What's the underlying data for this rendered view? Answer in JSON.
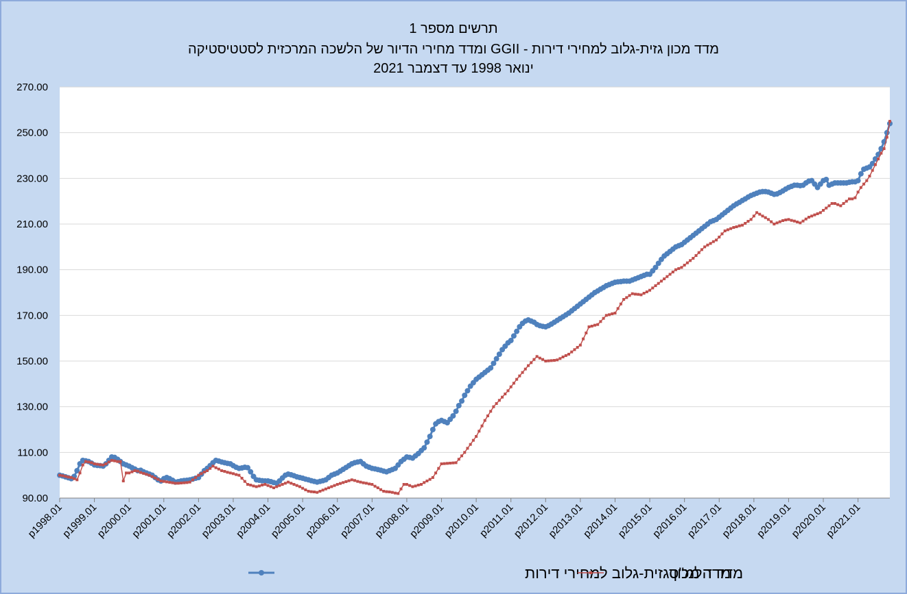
{
  "chart_data": {
    "type": "line",
    "title": "תרשים מספר 1",
    "subtitle": [
      "מדד מכון גזית-גלוב למחירי דירות - GGII ומדד מחירי הדיור של הלשכה המרכזית לסטטיסטיקה",
      "ינואר 1998 עד דצמבר 2021"
    ],
    "categories": [
      "p1998.01",
      null,
      null,
      null,
      null,
      null,
      null,
      null,
      null,
      null,
      null,
      null,
      "p1999.01",
      null,
      null,
      null,
      null,
      null,
      null,
      null,
      null,
      null,
      null,
      null,
      "p2000.01",
      null,
      null,
      null,
      null,
      null,
      null,
      null,
      null,
      null,
      null,
      null,
      "p2001.01",
      null,
      null,
      null,
      null,
      null,
      null,
      null,
      null,
      null,
      null,
      null,
      "p2002.01",
      null,
      null,
      null,
      null,
      null,
      null,
      null,
      null,
      null,
      null,
      null,
      "p2003.01",
      null,
      null,
      null,
      null,
      null,
      null,
      null,
      null,
      null,
      null,
      null,
      "p2004.01",
      null,
      null,
      null,
      null,
      null,
      null,
      null,
      null,
      null,
      null,
      null,
      "p2005.01",
      null,
      null,
      null,
      null,
      null,
      null,
      null,
      null,
      null,
      null,
      null,
      "p2006.01",
      null,
      null,
      null,
      null,
      null,
      null,
      null,
      null,
      null,
      null,
      null,
      "p2007.01",
      null,
      null,
      null,
      null,
      null,
      null,
      null,
      null,
      null,
      null,
      null,
      "p2008.01",
      null,
      null,
      null,
      null,
      null,
      null,
      null,
      null,
      null,
      null,
      null,
      "p2009.01",
      null,
      null,
      null,
      null,
      null,
      null,
      null,
      null,
      null,
      null,
      null,
      "p2010.01",
      null,
      null,
      null,
      null,
      null,
      null,
      null,
      null,
      null,
      null,
      null,
      "p2011.01",
      null,
      null,
      null,
      null,
      null,
      null,
      null,
      null,
      null,
      null,
      null,
      "p2012.01",
      null,
      null,
      null,
      null,
      null,
      null,
      null,
      null,
      null,
      null,
      null,
      "p2013.01",
      null,
      null,
      null,
      null,
      null,
      null,
      null,
      null,
      null,
      null,
      null,
      "p2014.01",
      null,
      null,
      null,
      null,
      null,
      null,
      null,
      null,
      null,
      null,
      null,
      "p2015.01",
      null,
      null,
      null,
      null,
      null,
      null,
      null,
      null,
      null,
      null,
      null,
      "p2016.01",
      null,
      null,
      null,
      null,
      null,
      null,
      null,
      null,
      null,
      null,
      null,
      "p2017.01",
      null,
      null,
      null,
      null,
      null,
      null,
      null,
      null,
      null,
      null,
      null,
      "p2018.01",
      null,
      null,
      null,
      null,
      null,
      null,
      null,
      null,
      null,
      null,
      null,
      "p2019.01",
      null,
      null,
      null,
      null,
      null,
      null,
      null,
      null,
      null,
      null,
      null,
      "p2020.01",
      null,
      null,
      null,
      null,
      null,
      null,
      null,
      null,
      null,
      null,
      null,
      "p2021.01",
      null,
      null,
      null,
      null,
      null,
      null,
      null,
      null,
      null,
      null,
      null
    ],
    "series": [
      {
        "name": "מדד מכון גזית-גלוב למחירי דירות",
        "color": "#4f81bd",
        "marker": "circle",
        "values": [
          100.0,
          99.7,
          99.3,
          98.9,
          98.5,
          99.5,
          102.0,
          105.0,
          106.5,
          106.3,
          106.0,
          105.3,
          104.5,
          104.3,
          104.2,
          104.0,
          105.0,
          106.5,
          108.0,
          107.8,
          107.0,
          106.0,
          105.0,
          104.5,
          104.0,
          103.3,
          102.7,
          102.0,
          102.2,
          101.5,
          101.0,
          100.5,
          100.0,
          99.0,
          98.0,
          97.5,
          98.5,
          99.0,
          98.5,
          97.8,
          97.0,
          97.2,
          97.5,
          97.7,
          97.8,
          98.0,
          98.3,
          98.7,
          99.0,
          100.5,
          102.0,
          103.0,
          104.2,
          105.5,
          106.5,
          106.2,
          105.8,
          105.5,
          105.2,
          105.0,
          104.2,
          103.5,
          103.0,
          103.2,
          103.5,
          103.3,
          101.5,
          99.5,
          98.0,
          97.8,
          97.6,
          97.5,
          97.5,
          97.2,
          96.8,
          96.5,
          97.5,
          98.8,
          100.0,
          100.5,
          100.2,
          99.8,
          99.3,
          99.0,
          98.7,
          98.3,
          98.0,
          97.6,
          97.3,
          97.0,
          97.3,
          97.6,
          98.0,
          99.0,
          100.0,
          100.5,
          101.0,
          101.8,
          102.6,
          103.4,
          104.2,
          105.0,
          105.5,
          105.8,
          106.0,
          105.0,
          104.0,
          103.5,
          103.0,
          102.8,
          102.5,
          102.2,
          101.8,
          101.5,
          102.0,
          102.5,
          103.0,
          104.5,
          106.0,
          107.0,
          108.0,
          107.8,
          107.5,
          108.5,
          109.5,
          110.8,
          112.0,
          114.5,
          117.0,
          120.0,
          122.5,
          123.5,
          124.0,
          123.5,
          123.0,
          124.5,
          126.0,
          128.0,
          130.5,
          132.5,
          135.0,
          137.0,
          139.0,
          140.5,
          142.0,
          143.0,
          144.0,
          145.0,
          146.0,
          147.0,
          149.0,
          151.0,
          153.0,
          155.0,
          156.5,
          158.0,
          159.0,
          161.0,
          163.0,
          165.0,
          166.5,
          167.5,
          168.0,
          167.5,
          167.0,
          166.0,
          165.5,
          165.2,
          165.0,
          165.5,
          166.2,
          167.0,
          167.8,
          168.6,
          169.4,
          170.2,
          171.0,
          172.0,
          173.0,
          174.0,
          175.0,
          176.0,
          177.0,
          178.0,
          179.0,
          180.0,
          180.7,
          181.5,
          182.2,
          183.0,
          183.5,
          184.0,
          184.5,
          184.7,
          184.8,
          185.0,
          185.0,
          185.0,
          185.5,
          186.0,
          186.5,
          187.0,
          187.5,
          188.0,
          188.0,
          189.5,
          191.0,
          192.8,
          194.5,
          196.0,
          197.0,
          198.0,
          199.0,
          200.0,
          200.5,
          201.0,
          202.0,
          203.0,
          204.0,
          205.0,
          206.0,
          207.0,
          208.0,
          209.0,
          210.0,
          211.0,
          211.5,
          212.0,
          213.0,
          214.0,
          215.0,
          216.0,
          217.0,
          218.0,
          218.8,
          219.5,
          220.3,
          221.0,
          221.8,
          222.5,
          223.0,
          223.5,
          224.0,
          224.2,
          224.2,
          224.0,
          223.5,
          223.0,
          223.2,
          223.8,
          224.5,
          225.3,
          226.0,
          226.5,
          227.0,
          227.0,
          226.8,
          227.0,
          228.0,
          228.8,
          229.0,
          227.5,
          226.0,
          227.5,
          229.0,
          229.5,
          227.0,
          227.5,
          228.0,
          228.0,
          228.0,
          228.0,
          228.0,
          228.3,
          228.5,
          228.5,
          229.0,
          232.0,
          234.0,
          234.5,
          235.0,
          236.5,
          238.5,
          240.5,
          243.0,
          246.0,
          250.0,
          254.0
        ]
      },
      {
        "name": "מדד הלמ\"ס",
        "color": "#c0504d",
        "marker": "square",
        "values": [
          100.0,
          99.8,
          99.5,
          99.2,
          99.0,
          98.5,
          98.0,
          101.0,
          104.5,
          106.0,
          105.8,
          105.5,
          105.0,
          104.8,
          104.6,
          104.5,
          105.0,
          105.8,
          106.5,
          106.3,
          106.0,
          106.0,
          97.5,
          101.0,
          101.0,
          101.5,
          102.0,
          101.8,
          101.2,
          100.8,
          100.4,
          100.0,
          99.4,
          98.8,
          98.2,
          97.5,
          97.3,
          97.1,
          96.9,
          96.7,
          96.5,
          96.5,
          96.6,
          96.7,
          96.8,
          97.0,
          98.0,
          99.0,
          100.0,
          100.7,
          101.4,
          102.0,
          103.0,
          104.0,
          103.3,
          102.7,
          102.0,
          101.7,
          101.3,
          101.0,
          100.7,
          100.3,
          100.0,
          98.7,
          97.3,
          96.0,
          95.7,
          95.3,
          95.0,
          95.3,
          95.7,
          96.0,
          95.5,
          95.0,
          94.5,
          95.0,
          95.5,
          96.0,
          96.5,
          97.0,
          96.5,
          96.0,
          95.5,
          95.0,
          94.3,
          93.6,
          93.0,
          92.8,
          92.7,
          92.5,
          93.0,
          93.5,
          94.0,
          94.5,
          95.0,
          95.5,
          96.0,
          96.4,
          96.8,
          97.2,
          97.6,
          98.0,
          97.7,
          97.3,
          97.0,
          96.7,
          96.5,
          96.2,
          96.0,
          95.2,
          94.5,
          93.7,
          93.0,
          92.8,
          92.7,
          92.5,
          92.2,
          92.0,
          94.0,
          96.0,
          96.0,
          95.5,
          95.0,
          95.3,
          95.7,
          96.0,
          96.8,
          97.5,
          98.2,
          99.0,
          101.0,
          103.0,
          105.0,
          105.1,
          105.2,
          105.3,
          105.4,
          105.5,
          107.0,
          108.5,
          110.0,
          111.8,
          113.5,
          115.3,
          117.0,
          119.3,
          121.6,
          124.0,
          126.0,
          128.0,
          130.0,
          131.4,
          132.8,
          134.2,
          135.6,
          137.0,
          138.7,
          140.3,
          142.0,
          143.5,
          145.0,
          146.5,
          148.0,
          149.3,
          150.7,
          152.0,
          151.3,
          150.7,
          150.0,
          150.1,
          150.2,
          150.3,
          150.5,
          151.1,
          151.8,
          152.4,
          153.0,
          154.0,
          155.0,
          156.0,
          157.0,
          159.7,
          162.3,
          165.0,
          165.3,
          165.7,
          166.0,
          167.3,
          168.7,
          170.0,
          170.3,
          170.7,
          171.0,
          173.0,
          175.0,
          177.0,
          177.8,
          178.7,
          179.5,
          179.3,
          179.2,
          179.0,
          179.7,
          180.3,
          181.0,
          182.0,
          183.0,
          184.0,
          185.0,
          186.0,
          187.0,
          188.0,
          189.0,
          190.0,
          190.5,
          191.0,
          192.0,
          193.0,
          194.0,
          195.0,
          196.2,
          197.5,
          198.8,
          200.0,
          200.8,
          201.5,
          202.3,
          203.0,
          204.3,
          205.7,
          207.0,
          207.5,
          208.0,
          208.5,
          208.8,
          209.2,
          209.5,
          210.3,
          211.2,
          212.0,
          213.5,
          215.0,
          214.3,
          213.5,
          212.8,
          212.0,
          211.0,
          210.0,
          210.5,
          211.0,
          211.5,
          211.8,
          212.0,
          211.6,
          211.3,
          210.9,
          210.5,
          211.3,
          212.2,
          213.0,
          213.5,
          214.0,
          214.5,
          215.0,
          216.0,
          217.0,
          218.0,
          219.0,
          219.0,
          218.5,
          218.0,
          219.0,
          220.0,
          221.0,
          221.0,
          221.5,
          224.0,
          226.0,
          227.5,
          229.0,
          231.0,
          233.5,
          236.0,
          238.5,
          241.0,
          243.0,
          248.0,
          255.0
        ]
      }
    ],
    "ylim": [
      90,
      270
    ],
    "yticks": [
      {
        "value": 90,
        "label": "90.00"
      },
      {
        "value": 110,
        "label": "110.00"
      },
      {
        "value": 130,
        "label": "130.00"
      },
      {
        "value": 150,
        "label": "150.00"
      },
      {
        "value": 170,
        "label": "170.00"
      },
      {
        "value": 190,
        "label": "190.00"
      },
      {
        "value": 210,
        "label": "210.00"
      },
      {
        "value": 230,
        "label": "230.00"
      },
      {
        "value": 250,
        "label": "250.00"
      },
      {
        "value": 270,
        "label": "270.00"
      }
    ],
    "grid": true,
    "legend": "bottom"
  }
}
